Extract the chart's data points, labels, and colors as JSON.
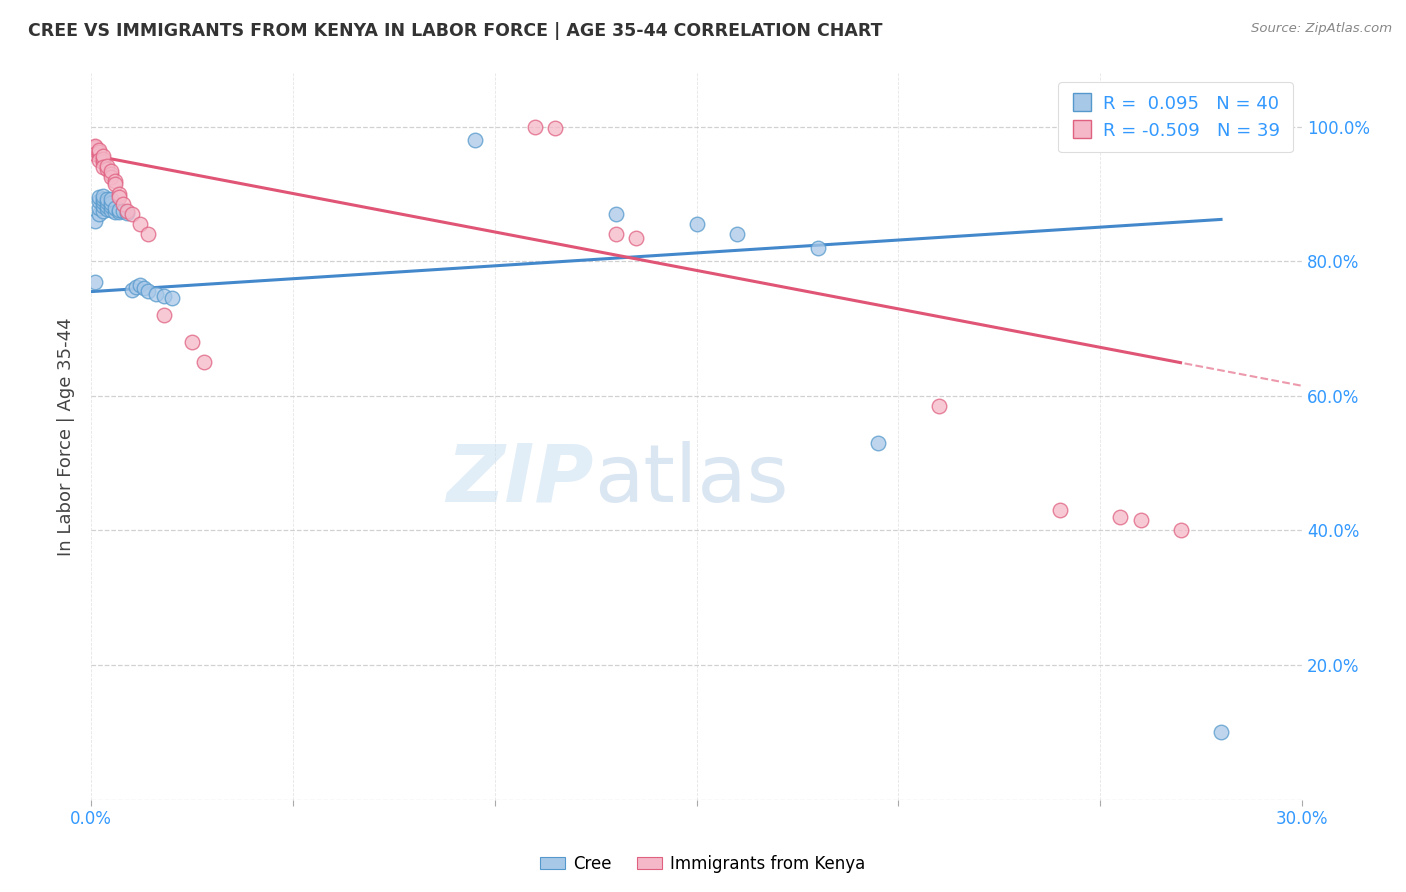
{
  "title": "CREE VS IMMIGRANTS FROM KENYA IN LABOR FORCE | AGE 35-44 CORRELATION CHART",
  "source": "Source: ZipAtlas.com",
  "ylabel": "In Labor Force | Age 35-44",
  "legend_cree_label": "Cree",
  "legend_kenya_label": "Immigrants from Kenya",
  "xmin": 0.0,
  "xmax": 0.3,
  "ymin": 0.0,
  "ymax": 1.08,
  "color_blue": "#a8c8e8",
  "color_blue_edge": "#5599cc",
  "color_blue_line": "#4488cc",
  "color_pink": "#f4b8c8",
  "color_pink_edge": "#e06080",
  "color_pink_line": "#e05575",
  "color_grid": "#cccccc",
  "watermark_zip": "ZIP",
  "watermark_atlas": "atlas",
  "cree_points": [
    [
      0.001,
      0.77
    ],
    [
      0.001,
      0.86
    ],
    [
      0.002,
      0.87
    ],
    [
      0.002,
      0.88
    ],
    [
      0.002,
      0.89
    ],
    [
      0.002,
      0.895
    ],
    [
      0.003,
      0.875
    ],
    [
      0.003,
      0.882
    ],
    [
      0.003,
      0.888
    ],
    [
      0.003,
      0.893
    ],
    [
      0.003,
      0.897
    ],
    [
      0.004,
      0.878
    ],
    [
      0.004,
      0.883
    ],
    [
      0.004,
      0.888
    ],
    [
      0.004,
      0.892
    ],
    [
      0.005,
      0.876
    ],
    [
      0.005,
      0.882
    ],
    [
      0.005,
      0.887
    ],
    [
      0.005,
      0.892
    ],
    [
      0.006,
      0.874
    ],
    [
      0.006,
      0.88
    ],
    [
      0.007,
      0.873
    ],
    [
      0.007,
      0.877
    ],
    [
      0.008,
      0.875
    ],
    [
      0.009,
      0.872
    ],
    [
      0.01,
      0.758
    ],
    [
      0.011,
      0.762
    ],
    [
      0.012,
      0.765
    ],
    [
      0.013,
      0.76
    ],
    [
      0.014,
      0.756
    ],
    [
      0.016,
      0.752
    ],
    [
      0.018,
      0.748
    ],
    [
      0.02,
      0.745
    ],
    [
      0.095,
      0.98
    ],
    [
      0.13,
      0.87
    ],
    [
      0.15,
      0.855
    ],
    [
      0.16,
      0.84
    ],
    [
      0.18,
      0.82
    ],
    [
      0.195,
      0.53
    ],
    [
      0.28,
      0.1
    ]
  ],
  "kenya_points": [
    [
      0.001,
      0.965
    ],
    [
      0.001,
      0.968
    ],
    [
      0.001,
      0.97
    ],
    [
      0.001,
      0.972
    ],
    [
      0.001,
      0.96
    ],
    [
      0.002,
      0.958
    ],
    [
      0.002,
      0.962
    ],
    [
      0.002,
      0.966
    ],
    [
      0.002,
      0.95
    ],
    [
      0.003,
      0.948
    ],
    [
      0.003,
      0.952
    ],
    [
      0.003,
      0.956
    ],
    [
      0.003,
      0.94
    ],
    [
      0.004,
      0.938
    ],
    [
      0.004,
      0.942
    ],
    [
      0.005,
      0.93
    ],
    [
      0.005,
      0.925
    ],
    [
      0.005,
      0.935
    ],
    [
      0.006,
      0.92
    ],
    [
      0.006,
      0.915
    ],
    [
      0.007,
      0.9
    ],
    [
      0.007,
      0.895
    ],
    [
      0.008,
      0.885
    ],
    [
      0.009,
      0.875
    ],
    [
      0.01,
      0.87
    ],
    [
      0.012,
      0.855
    ],
    [
      0.014,
      0.84
    ],
    [
      0.018,
      0.72
    ],
    [
      0.025,
      0.68
    ],
    [
      0.028,
      0.65
    ],
    [
      0.11,
      1.0
    ],
    [
      0.115,
      0.998
    ],
    [
      0.13,
      0.84
    ],
    [
      0.135,
      0.835
    ],
    [
      0.21,
      0.585
    ],
    [
      0.24,
      0.43
    ],
    [
      0.255,
      0.42
    ],
    [
      0.26,
      0.415
    ],
    [
      0.27,
      0.4
    ]
  ],
  "cree_trend": [
    0.0,
    0.3,
    0.754,
    0.87
  ],
  "kenya_trend_solid_end": 0.27,
  "kenya_trend": [
    0.0,
    0.3,
    0.958,
    0.58
  ]
}
